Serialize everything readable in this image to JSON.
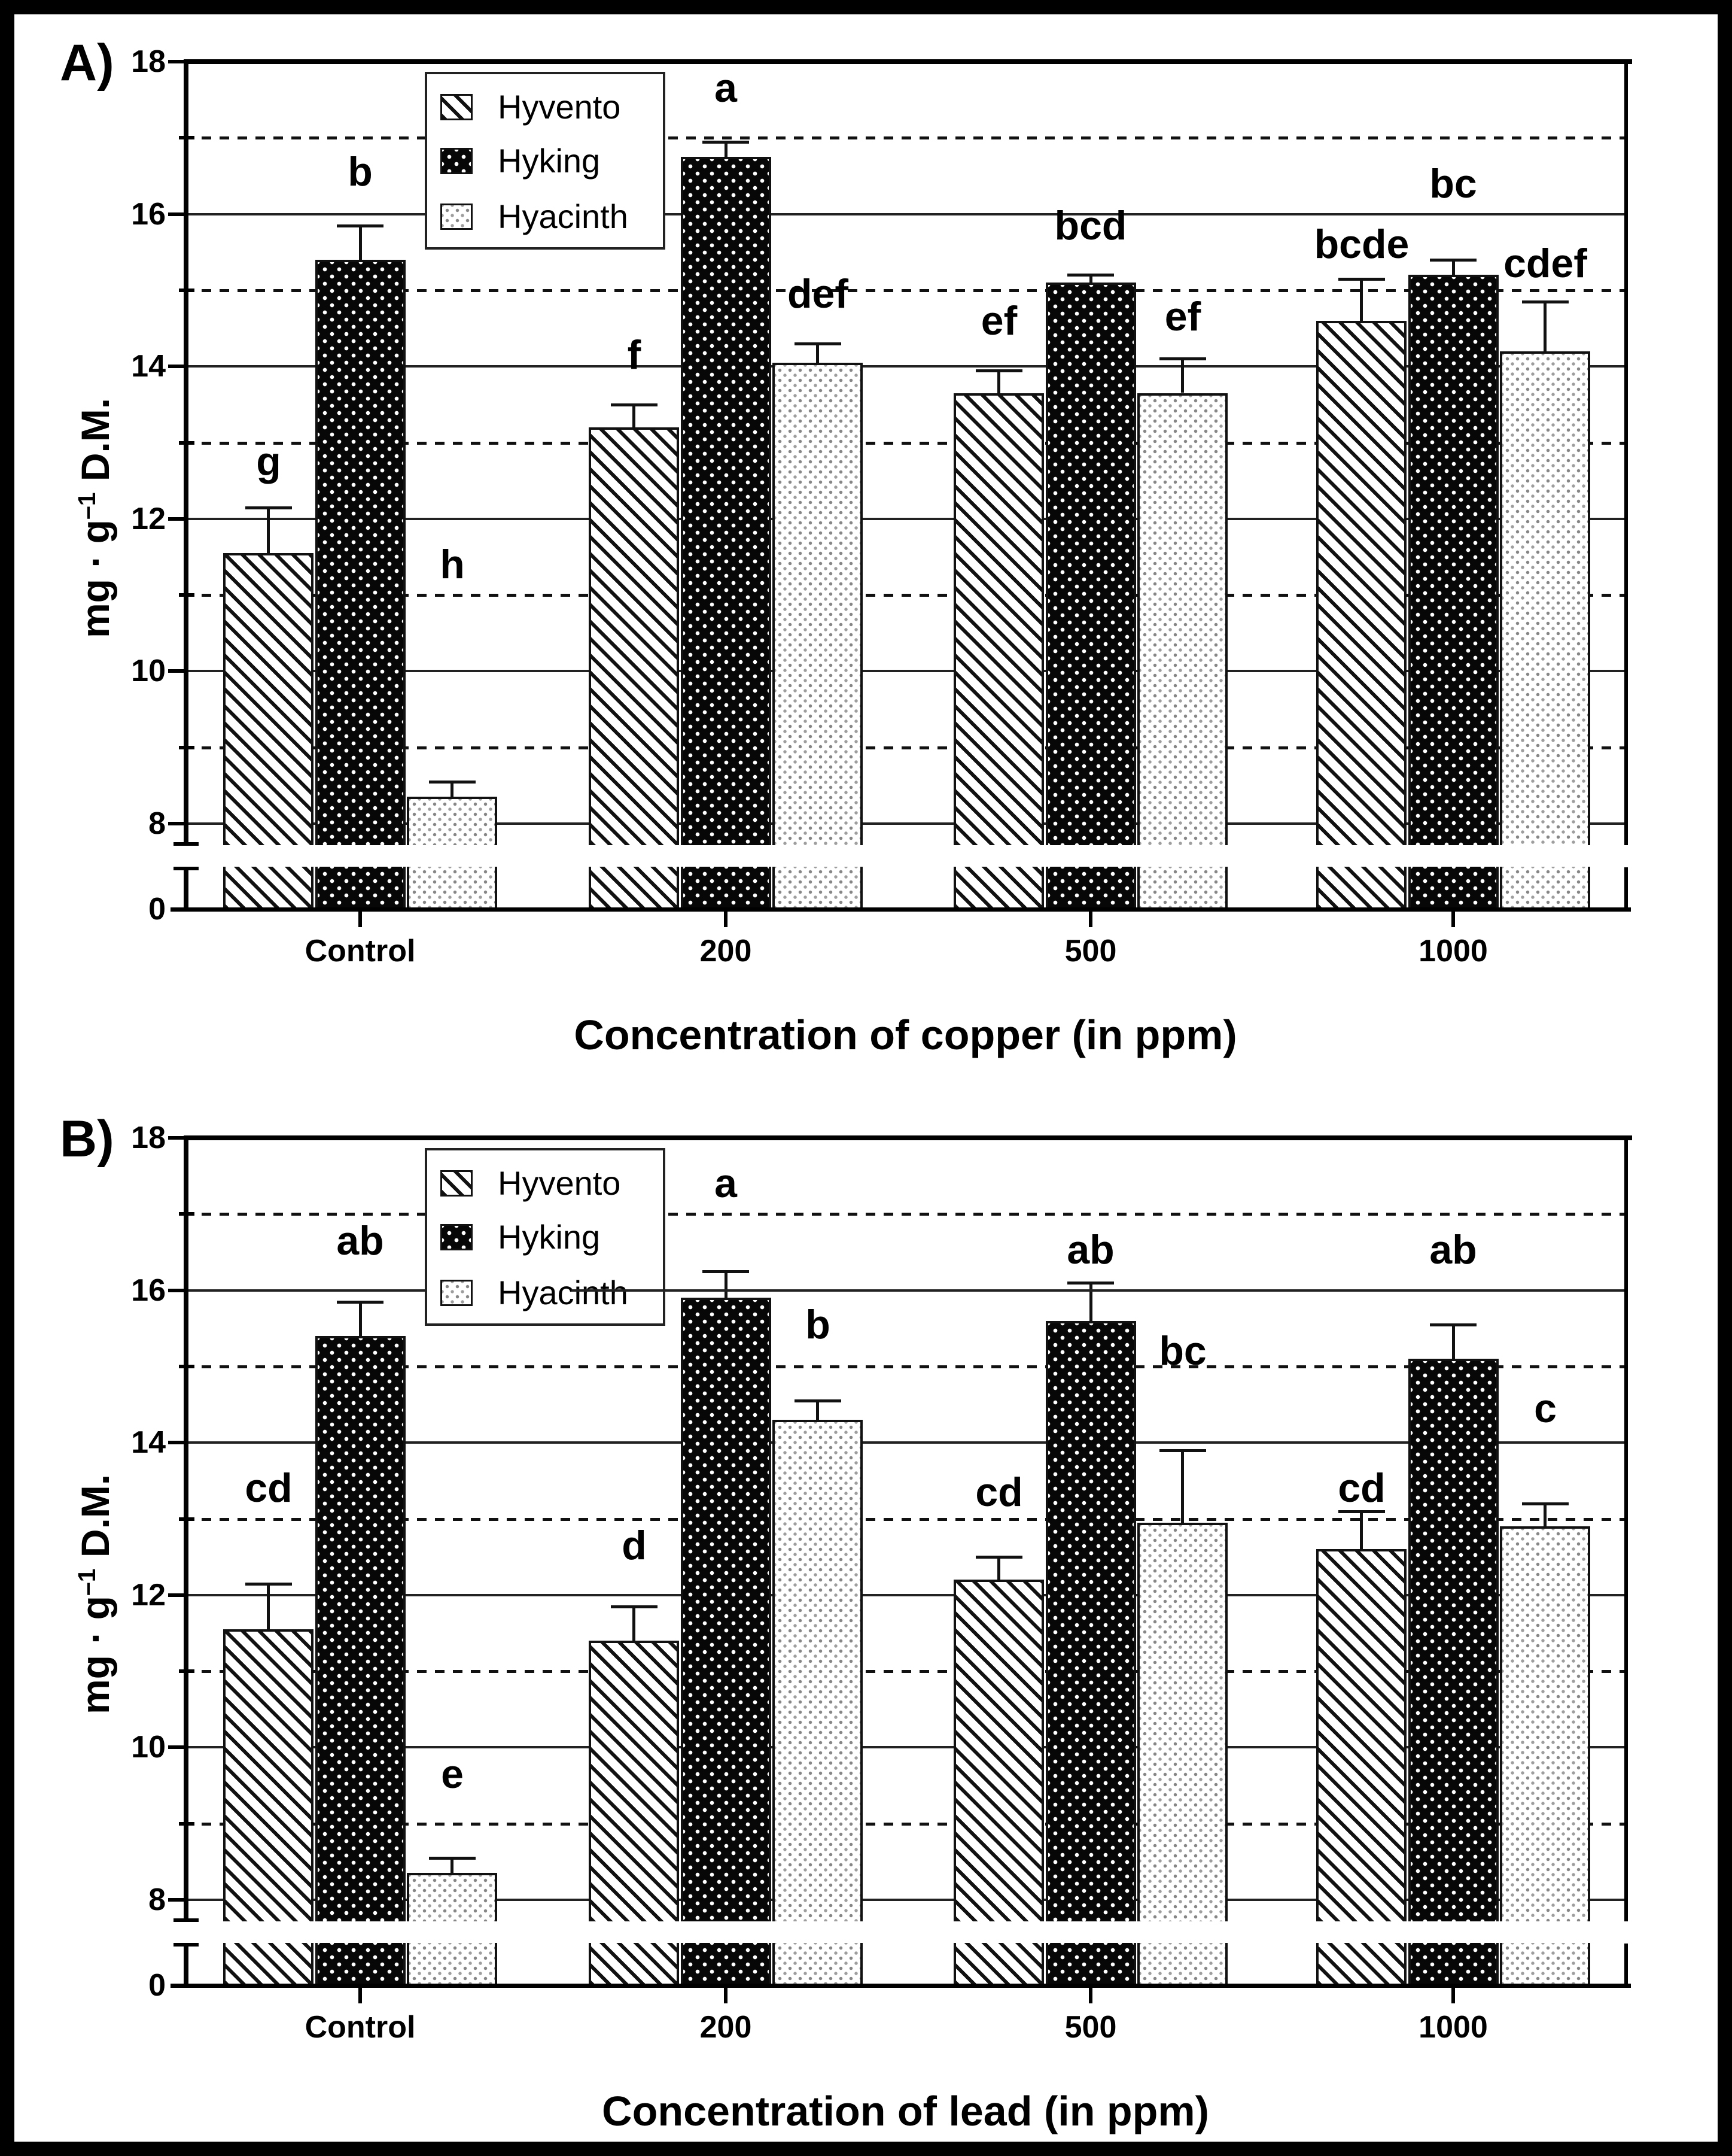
{
  "figure": {
    "panel_a_label": "A)",
    "panel_b_label": "B)",
    "ylabel_main": "mg · g",
    "ylabel_sup": "–1",
    "ylabel_tail": " D.M.",
    "legend_items": [
      {
        "name": "Hyvento",
        "pattern": "diagonal-hatch"
      },
      {
        "name": "Hyking",
        "pattern": "white-dots-on-black"
      },
      {
        "name": "Hyacinth",
        "pattern": "light-gray-dots"
      }
    ],
    "colors": {
      "background": "#ffffff",
      "ink": "#000000",
      "bar_outline": "#111111",
      "hyking_fill": "#070707",
      "hyacinth_dot": "#868686"
    }
  },
  "chart_data": [
    {
      "type": "bar",
      "panel_label": "A)",
      "xlabel": "Concentration of copper (in ppm)",
      "ylabel": "mg · g⁻¹ D.M.",
      "categories": [
        "Control",
        "200",
        "500",
        "1000"
      ],
      "y_axis": {
        "labeled_ticks": [
          18,
          16,
          14,
          12,
          10,
          8
        ],
        "baseline_label": "0",
        "solid_gridlines": [
          16,
          14,
          12,
          10,
          8
        ],
        "dashed_gridlines": [
          17,
          15,
          13,
          11,
          9
        ],
        "display_range": [
          8,
          18
        ],
        "axis_break_between": [
          0,
          8
        ],
        "grid": true,
        "legend_position": "top-left-inside"
      },
      "series": [
        {
          "name": "Hyvento",
          "values": [
            11.55,
            13.2,
            13.65,
            14.6
          ],
          "errors": [
            0.6,
            0.3,
            0.3,
            0.55
          ],
          "letters": [
            "g",
            "f",
            "ef",
            "bcde"
          ],
          "letter_y": [
            12.5,
            13.9,
            14.35,
            15.35
          ]
        },
        {
          "name": "Hyking",
          "values": [
            15.4,
            16.75,
            15.1,
            15.2
          ],
          "errors": [
            0.45,
            0.2,
            0.1,
            0.2
          ],
          "letters": [
            "b",
            "a",
            "bcd",
            "bc"
          ],
          "letter_y": [
            16.3,
            17.4,
            15.6,
            16.15
          ]
        },
        {
          "name": "Hyacinth",
          "values": [
            8.35,
            14.05,
            13.65,
            14.2
          ],
          "errors": [
            0.2,
            0.25,
            0.45,
            0.65
          ],
          "letters": [
            "h",
            "def",
            "ef",
            "cdef"
          ],
          "letter_y": [
            11.15,
            14.7,
            14.4,
            15.1
          ]
        }
      ]
    },
    {
      "type": "bar",
      "panel_label": "B)",
      "xlabel": "Concentration of lead (in ppm)",
      "ylabel": "mg · g⁻¹ D.M.",
      "categories": [
        "Control",
        "200",
        "500",
        "1000"
      ],
      "y_axis": {
        "labeled_ticks": [
          18,
          16,
          14,
          12,
          10,
          8
        ],
        "baseline_label": "0",
        "solid_gridlines": [
          16,
          14,
          12,
          10,
          8
        ],
        "dashed_gridlines": [
          17,
          15,
          13,
          11,
          9
        ],
        "display_range": [
          8,
          18
        ],
        "axis_break_between": [
          0,
          8
        ],
        "grid": true,
        "legend_position": "top-left-inside"
      },
      "series": [
        {
          "name": "Hyvento",
          "values": [
            11.55,
            11.4,
            12.2,
            12.6
          ],
          "errors": [
            0.6,
            0.45,
            0.3,
            0.5
          ],
          "letters": [
            "cd",
            "d",
            "cd",
            "cd"
          ],
          "letter_y": [
            13.15,
            12.4,
            13.1,
            13.15
          ]
        },
        {
          "name": "Hyking",
          "values": [
            15.4,
            15.9,
            15.6,
            15.1
          ],
          "errors": [
            0.45,
            0.35,
            0.5,
            0.45
          ],
          "letters": [
            "ab",
            "a",
            "ab",
            "ab"
          ],
          "letter_y": [
            16.4,
            17.15,
            16.28,
            16.28
          ]
        },
        {
          "name": "Hyacinth",
          "values": [
            8.35,
            14.3,
            12.95,
            12.9
          ],
          "errors": [
            0.2,
            0.25,
            0.95,
            0.3
          ],
          "letters": [
            "e",
            "b",
            "bc",
            "c"
          ],
          "letter_y": [
            9.4,
            15.3,
            14.95,
            14.2
          ]
        }
      ]
    }
  ]
}
